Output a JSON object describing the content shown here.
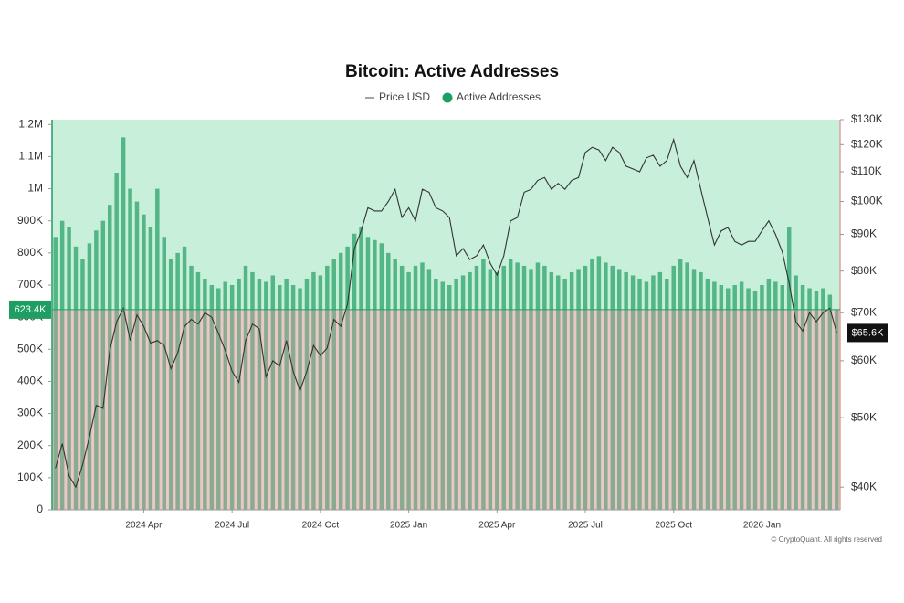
{
  "chart_data": {
    "type": "bar-line",
    "title": "Bitcoin: Active Addresses",
    "footer": "© CryptoQuant. All rights reserved",
    "categories": [
      null,
      null,
      null,
      null,
      null,
      null,
      null,
      null,
      null,
      null,
      null,
      null,
      null,
      "2024 Apr",
      null,
      null,
      null,
      null,
      null,
      null,
      null,
      null,
      null,
      null,
      null,
      null,
      "2024 Jul",
      null,
      null,
      null,
      null,
      null,
      null,
      null,
      null,
      null,
      null,
      null,
      null,
      "2024 Oct",
      null,
      null,
      null,
      null,
      null,
      null,
      null,
      null,
      null,
      null,
      null,
      null,
      "2025 Jan",
      null,
      null,
      null,
      null,
      null,
      null,
      null,
      null,
      null,
      null,
      null,
      null,
      "2025 Apr",
      null,
      null,
      null,
      null,
      null,
      null,
      null,
      null,
      null,
      null,
      null,
      null,
      "2025 Jul",
      null,
      null,
      null,
      null,
      null,
      null,
      null,
      null,
      null,
      null,
      null,
      null,
      "2025 Oct",
      null,
      null,
      null,
      null,
      null,
      null,
      null,
      null,
      null,
      null,
      null,
      null,
      "2026 Jan",
      null,
      null,
      null,
      null,
      null,
      null,
      null,
      null,
      null,
      null,
      null
    ],
    "series": [
      {
        "name": "Active Addresses",
        "color": "#1f9e63",
        "axis": "y",
        "values": [
          850000,
          900000,
          880000,
          820000,
          780000,
          830000,
          870000,
          900000,
          950000,
          1050000,
          1160000,
          1000000,
          960000,
          920000,
          880000,
          1000000,
          850000,
          780000,
          800000,
          820000,
          760000,
          740000,
          720000,
          700000,
          690000,
          710000,
          700000,
          720000,
          760000,
          740000,
          720000,
          710000,
          730000,
          700000,
          720000,
          700000,
          690000,
          720000,
          740000,
          730000,
          760000,
          780000,
          800000,
          820000,
          860000,
          880000,
          850000,
          840000,
          830000,
          800000,
          780000,
          760000,
          740000,
          760000,
          770000,
          750000,
          720000,
          710000,
          700000,
          720000,
          730000,
          740000,
          760000,
          780000,
          750000,
          740000,
          760000,
          780000,
          770000,
          760000,
          750000,
          770000,
          760000,
          740000,
          730000,
          720000,
          740000,
          750000,
          760000,
          780000,
          790000,
          770000,
          760000,
          750000,
          740000,
          730000,
          720000,
          710000,
          730000,
          740000,
          720000,
          760000,
          780000,
          770000,
          750000,
          740000,
          720000,
          710000,
          700000,
          690000,
          700000,
          710000,
          690000,
          680000,
          700000,
          720000,
          710000,
          700000,
          880000,
          730000,
          700000,
          690000,
          680000,
          690000,
          670000,
          623400
        ]
      },
      {
        "name": "Price USD",
        "color": "#333333",
        "axis": "y2",
        "values": [
          42500,
          46000,
          41500,
          40000,
          43000,
          47000,
          52000,
          51500,
          62000,
          68000,
          71000,
          64000,
          69500,
          67000,
          63500,
          64000,
          63000,
          58500,
          61500,
          67000,
          68500,
          67500,
          70000,
          69000,
          65500,
          62000,
          58000,
          56000,
          64000,
          67500,
          66500,
          57000,
          60000,
          59000,
          64000,
          58000,
          54500,
          58000,
          63000,
          61000,
          62500,
          68500,
          67000,
          72000,
          86000,
          91000,
          98000,
          97000,
          97000,
          100000,
          104000,
          95000,
          98000,
          94000,
          104000,
          103000,
          98000,
          97000,
          95000,
          84000,
          86000,
          83000,
          84000,
          87000,
          82000,
          79000,
          84000,
          94000,
          95000,
          103000,
          104000,
          107000,
          108000,
          104000,
          106000,
          104000,
          107000,
          108000,
          117000,
          119000,
          118000,
          114000,
          119000,
          117000,
          112000,
          111000,
          110000,
          115000,
          116000,
          112000,
          114000,
          122000,
          112000,
          108000,
          114000,
          104000,
          95000,
          87000,
          91000,
          92000,
          88000,
          87000,
          88000,
          88000,
          91000,
          94000,
          90000,
          85000,
          77000,
          68000,
          66000,
          70000,
          68000,
          70000,
          71000,
          65600
        ]
      }
    ],
    "annotations": [
      {
        "text": "623.4K",
        "value": 623400,
        "axis": "y"
      },
      {
        "text": "$65.6K",
        "value": 65600,
        "axis": "y2"
      }
    ],
    "ylim": [
      0,
      1215000
    ],
    "yticks": [
      0,
      {
        "value": 100000,
        "label": "100K"
      },
      {
        "value": 200000,
        "label": "200K"
      },
      {
        "value": 300000,
        "label": "300K"
      },
      {
        "value": 400000,
        "label": "400K"
      },
      {
        "value": 500000,
        "label": "500K"
      },
      {
        "value": 600000,
        "label": "600K"
      },
      {
        "value": 700000,
        "label": "700K"
      },
      {
        "value": 800000,
        "label": "800K"
      },
      {
        "value": 900000,
        "label": "900K"
      },
      {
        "value": 1000000,
        "label": "1M"
      },
      {
        "value": 1100000,
        "label": "1.1M"
      },
      {
        "value": 1200000,
        "label": "1.2M"
      }
    ],
    "y2lim": [
      37200,
      130000
    ],
    "y2_log": true,
    "y2ticks": [
      {
        "value": 40000,
        "label": "$40K"
      },
      {
        "value": 50000,
        "label": "$50K"
      },
      {
        "value": 60000,
        "label": "$60K"
      },
      {
        "value": 70000,
        "label": "$70K"
      },
      {
        "value": 80000,
        "label": "$80K"
      },
      {
        "value": 90000,
        "label": "$90K"
      },
      {
        "value": 100000,
        "label": "$100K"
      },
      {
        "value": 110000,
        "label": "$110K"
      },
      {
        "value": 120000,
        "label": "$120K"
      },
      {
        "value": 130000,
        "label": "$130K"
      }
    ]
  }
}
